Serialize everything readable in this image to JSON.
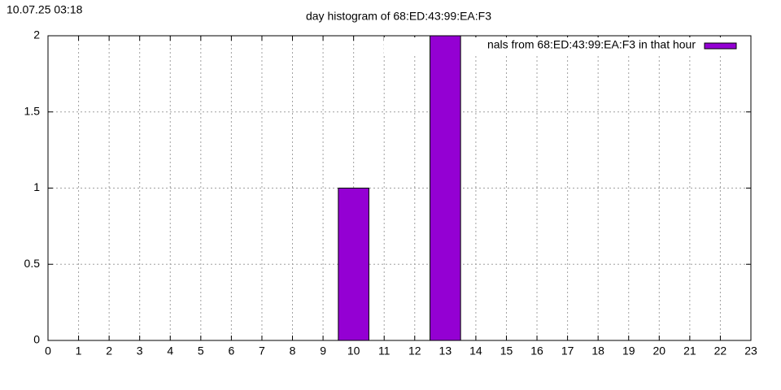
{
  "timestamp": "10.07.25 03:18",
  "chart_data": {
    "type": "bar",
    "title": "day histogram of 68:ED:43:99:EA:F3",
    "x": [
      0,
      1,
      2,
      3,
      4,
      5,
      6,
      7,
      8,
      9,
      10,
      11,
      12,
      13,
      14,
      15,
      16,
      17,
      18,
      19,
      20,
      21,
      22,
      23
    ],
    "series": [
      {
        "name": "nals from 68:ED:43:99:EA:F3 in that hour",
        "color": "#9400d3",
        "values": [
          0,
          0,
          0,
          0,
          0,
          0,
          0,
          0,
          0,
          0,
          1,
          0,
          0,
          2,
          0,
          0,
          0,
          0,
          0,
          0,
          0,
          0,
          0,
          0
        ]
      }
    ],
    "xlim": [
      0,
      23
    ],
    "xticks": [
      0,
      1,
      2,
      3,
      4,
      5,
      6,
      7,
      8,
      9,
      10,
      11,
      12,
      13,
      14,
      15,
      16,
      17,
      18,
      19,
      20,
      21,
      22,
      23
    ],
    "ylim": [
      0,
      2
    ],
    "yticks": [
      0,
      0.5,
      1,
      1.5,
      2
    ],
    "grid": true,
    "legend": "top-right"
  }
}
